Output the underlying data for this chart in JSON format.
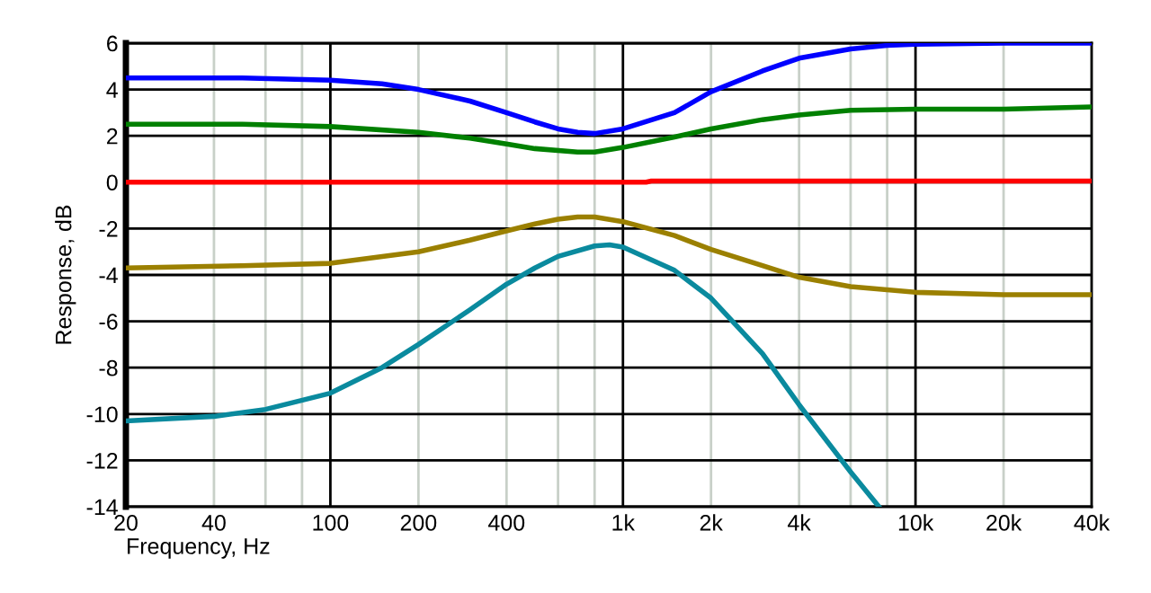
{
  "chart_data": {
    "type": "line",
    "xlabel": "Frequency, Hz",
    "ylabel": "Response, dB",
    "log": "x",
    "grid": true,
    "marker": "none",
    "line_style": "solid",
    "xlim": [
      20,
      40000
    ],
    "ylim": [
      -14,
      6
    ],
    "xticks": [
      20,
      40,
      {
        "value": 60,
        "label": null
      },
      {
        "value": 80,
        "label": null
      },
      100,
      200,
      400,
      {
        "value": 600,
        "label": null
      },
      {
        "value": 800,
        "label": null
      },
      {
        "value": 1000,
        "label": "1k"
      },
      {
        "value": 2000,
        "label": "2k"
      },
      {
        "value": 4000,
        "label": "4k"
      },
      {
        "value": 6000,
        "label": null
      },
      {
        "value": 8000,
        "label": null
      },
      {
        "value": 10000,
        "label": "10k"
      },
      {
        "value": 20000,
        "label": "20k"
      },
      {
        "value": 40000,
        "label": "40k"
      }
    ],
    "yticks": [
      -14,
      -12,
      -10,
      -8,
      -6,
      -4,
      -2,
      0,
      2,
      4,
      6
    ],
    "series": [
      {
        "color": "#0000ff",
        "x": [
          20,
          50,
          100,
          150,
          200,
          300,
          400,
          500,
          600,
          700,
          800,
          1000,
          1500,
          2000,
          3000,
          4000,
          6000,
          8000,
          10000,
          20000,
          40000
        ],
        "values": [
          4.5,
          4.5,
          4.4,
          4.25,
          4.0,
          3.5,
          3.0,
          2.6,
          2.3,
          2.15,
          2.1,
          2.3,
          3.0,
          3.9,
          4.8,
          5.35,
          5.75,
          5.9,
          5.95,
          6.0,
          6.0
        ]
      },
      {
        "color": "#008000",
        "x": [
          20,
          50,
          100,
          200,
          300,
          400,
          500,
          700,
          800,
          1000,
          1500,
          2000,
          3000,
          4000,
          6000,
          10000,
          20000,
          40000
        ],
        "values": [
          2.5,
          2.5,
          2.4,
          2.15,
          1.9,
          1.65,
          1.45,
          1.3,
          1.3,
          1.5,
          1.95,
          2.3,
          2.7,
          2.9,
          3.1,
          3.15,
          3.15,
          3.25
        ]
      },
      {
        "color": "#ff0000",
        "x": [
          20,
          1200,
          1250,
          40000
        ],
        "values": [
          0,
          0,
          0.05,
          0.05
        ]
      },
      {
        "color": "#9b8000",
        "x": [
          20,
          50,
          100,
          200,
          300,
          400,
          500,
          600,
          700,
          800,
          1000,
          1500,
          2000,
          3000,
          4000,
          6000,
          10000,
          20000,
          40000
        ],
        "values": [
          -3.7,
          -3.6,
          -3.5,
          -3.0,
          -2.5,
          -2.1,
          -1.8,
          -1.6,
          -1.5,
          -1.5,
          -1.7,
          -2.3,
          -2.9,
          -3.6,
          -4.1,
          -4.5,
          -4.75,
          -4.85,
          -4.85
        ]
      },
      {
        "color": "#0a8a9e",
        "x": [
          20,
          40,
          60,
          100,
          150,
          200,
          300,
          400,
          500,
          600,
          800,
          900,
          1000,
          1500,
          2000,
          3000,
          4000,
          6000,
          7500
        ],
        "values": [
          -10.3,
          -10.1,
          -9.8,
          -9.1,
          -8.0,
          -7.0,
          -5.5,
          -4.4,
          -3.7,
          -3.2,
          -2.75,
          -2.7,
          -2.8,
          -3.8,
          -5.0,
          -7.4,
          -9.6,
          -12.5,
          -14
        ]
      }
    ]
  }
}
